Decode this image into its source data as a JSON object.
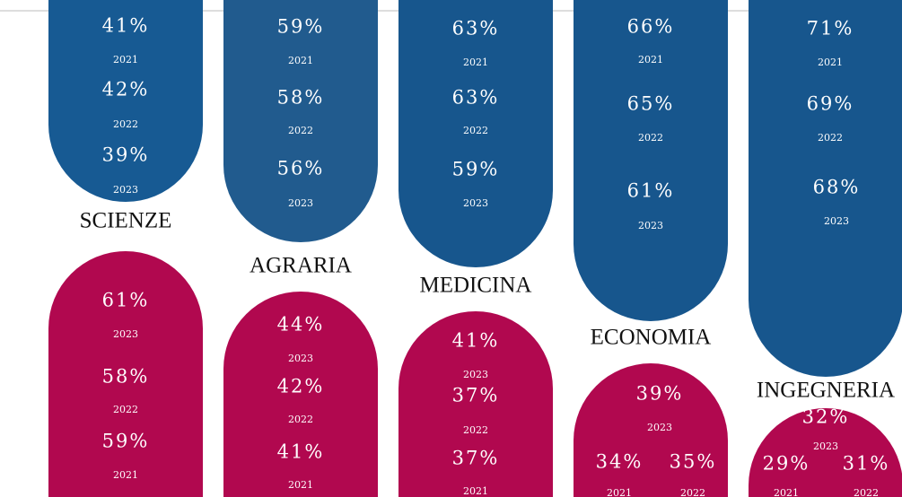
{
  "columns": [
    {
      "label": "SCIENZE",
      "top": [
        {
          "value": "41%",
          "year": "2021"
        },
        {
          "value": "42%",
          "year": "2022"
        },
        {
          "value": "39%",
          "year": "2023"
        }
      ],
      "bottom": [
        {
          "value": "61%",
          "year": "2023"
        },
        {
          "value": "58%",
          "year": "2022"
        },
        {
          "value": "59%",
          "year": "2021"
        }
      ]
    },
    {
      "label": "AGRARIA",
      "top": [
        {
          "value": "59%",
          "year": "2021"
        },
        {
          "value": "58%",
          "year": "2022"
        },
        {
          "value": "56%",
          "year": "2023"
        }
      ],
      "bottom": [
        {
          "value": "44%",
          "year": "2023"
        },
        {
          "value": "42%",
          "year": "2022"
        },
        {
          "value": "41%",
          "year": "2021"
        }
      ]
    },
    {
      "label": "MEDICINA",
      "top": [
        {
          "value": "63%",
          "year": "2021"
        },
        {
          "value": "63%",
          "year": "2022"
        },
        {
          "value": "59%",
          "year": "2023"
        }
      ],
      "bottom": [
        {
          "value": "41%",
          "year": "2023"
        },
        {
          "value": "37%",
          "year": "2022"
        },
        {
          "value": "37%",
          "year": "2021"
        }
      ]
    },
    {
      "label": "ECONOMIA",
      "top": [
        {
          "value": "66%",
          "year": "2021"
        },
        {
          "value": "65%",
          "year": "2022"
        },
        {
          "value": "61%",
          "year": "2023"
        }
      ],
      "bottom": [
        {
          "value": "39%",
          "year": "2023"
        },
        {
          "value": "34%",
          "year": "2021"
        },
        {
          "value": "35%",
          "year": "2022"
        }
      ]
    },
    {
      "label": "INGEGNERIA",
      "top": [
        {
          "value": "71%",
          "year": "2021"
        },
        {
          "value": "69%",
          "year": "2022"
        },
        {
          "value": "68%",
          "year": "2023"
        }
      ],
      "bottom": [
        {
          "value": "32%",
          "year": "2023"
        },
        {
          "value": "29%",
          "year": "2021"
        },
        {
          "value": "31%",
          "year": "2022"
        }
      ]
    }
  ]
}
